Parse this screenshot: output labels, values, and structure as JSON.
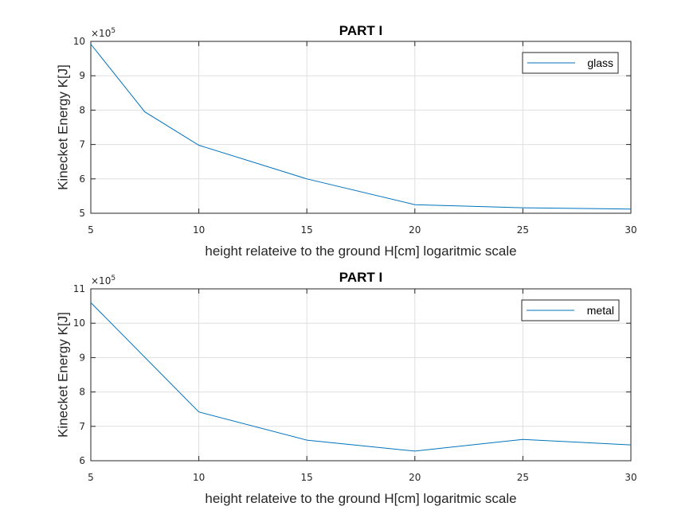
{
  "colors": {
    "series": "#0072BD",
    "axis": "#262626",
    "grid": "#dfdfdf",
    "background": "#ffffff"
  },
  "chart_data": [
    {
      "type": "line",
      "title": "PART I",
      "xlabel": "height relateive to the ground H[cm] logaritmic scale",
      "ylabel": "Kinecket Energy K[J]",
      "exponent_label": "×10",
      "exponent_power": "5",
      "xlim": [
        5,
        30
      ],
      "ylim": [
        5,
        10
      ],
      "xticks": [
        "5",
        "10",
        "15",
        "20",
        "25",
        "30"
      ],
      "yticks": [
        "5",
        "6",
        "7",
        "8",
        "9",
        "10"
      ],
      "grid": true,
      "legend_location": "top-right",
      "series": [
        {
          "name": "glass",
          "x": [
            5,
            7.5,
            10,
            15,
            20,
            25,
            30
          ],
          "y": [
            9.92,
            7.95,
            6.98,
            6.0,
            5.25,
            5.16,
            5.12
          ]
        }
      ]
    },
    {
      "type": "line",
      "title": "PART I",
      "xlabel": "height relateive to the ground H[cm] logaritmic scale",
      "ylabel": "Kinecket Energy K[J]",
      "exponent_label": "×10",
      "exponent_power": "5",
      "xlim": [
        5,
        30
      ],
      "ylim": [
        6,
        11
      ],
      "xticks": [
        "5",
        "10",
        "15",
        "20",
        "25",
        "30"
      ],
      "yticks": [
        "6",
        "7",
        "8",
        "9",
        "10",
        "11"
      ],
      "grid": true,
      "legend_location": "top-right",
      "series": [
        {
          "name": "metal",
          "x": [
            5,
            10,
            15,
            20,
            25,
            30
          ],
          "y": [
            10.6,
            7.42,
            6.6,
            6.28,
            6.62,
            6.46
          ]
        }
      ]
    }
  ]
}
